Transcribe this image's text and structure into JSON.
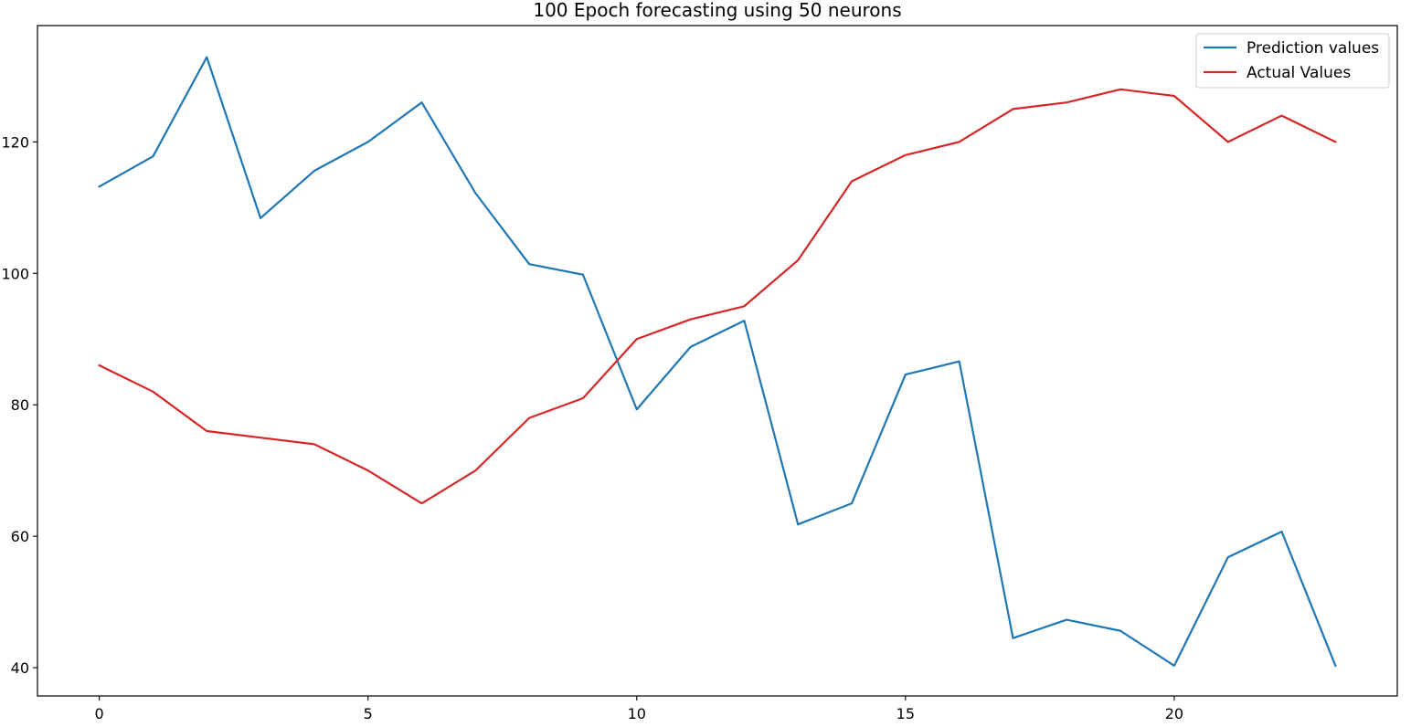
{
  "chart_data": {
    "type": "line",
    "title": "100 Epoch forecasting using 50 neurons",
    "xlabel": "",
    "ylabel": "",
    "x": [
      0,
      1,
      2,
      3,
      4,
      5,
      6,
      7,
      8,
      9,
      10,
      11,
      12,
      13,
      14,
      15,
      16,
      17,
      18,
      19,
      20,
      21,
      22,
      23
    ],
    "xlim": [
      -1.15,
      24.15
    ],
    "ylim": [
      35.7,
      137.7
    ],
    "x_ticks": [
      "0",
      "5",
      "10",
      "15",
      "20"
    ],
    "y_ticks": [
      "40",
      "60",
      "80",
      "100",
      "120"
    ],
    "x_tick_values": [
      0,
      5,
      10,
      15,
      20
    ],
    "y_tick_values": [
      40,
      60,
      80,
      100,
      120
    ],
    "grid": false,
    "legend_position": "top-right",
    "series": [
      {
        "name": "Prediction values",
        "color": "#1f77b4",
        "values": [
          113.2,
          117.8,
          132.9,
          108.4,
          115.6,
          120.0,
          126.0,
          112.2,
          101.4,
          99.8,
          79.3,
          88.8,
          92.8,
          61.8,
          65.0,
          84.6,
          86.6,
          44.5,
          47.3,
          45.6,
          40.3,
          56.8,
          60.7,
          40.3
        ]
      },
      {
        "name": "Actual Values",
        "color": "#d62728",
        "values": [
          86,
          82,
          76,
          75,
          74,
          70,
          65,
          70,
          78,
          81,
          90,
          93,
          95,
          102,
          114,
          118,
          120,
          125,
          126,
          128,
          127,
          120,
          124,
          120
        ]
      }
    ]
  }
}
